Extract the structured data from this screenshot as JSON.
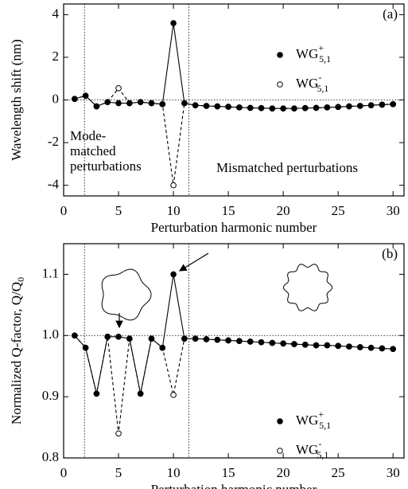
{
  "chart_data": [
    {
      "type": "line",
      "panel_label": "(a)",
      "xlabel": "Perturbation harmonic number",
      "ylabel": "Wavelength shift (nm)",
      "x": [
        1,
        2,
        3,
        4,
        5,
        6,
        7,
        8,
        9,
        10,
        11,
        12,
        13,
        14,
        15,
        16,
        17,
        18,
        19,
        20,
        21,
        22,
        23,
        24,
        25,
        26,
        27,
        28,
        29,
        30
      ],
      "series": [
        {
          "name": "WG",
          "superscript": "+",
          "subscript": "5,1",
          "color": "#000000",
          "marker": "filled",
          "dashed": false,
          "values": [
            0.05,
            0.2,
            -0.3,
            -0.1,
            -0.15,
            -0.15,
            -0.1,
            -0.15,
            -0.2,
            3.6,
            -0.15,
            -0.25,
            -0.28,
            -0.3,
            -0.32,
            -0.35,
            -0.37,
            -0.38,
            -0.4,
            -0.4,
            -0.4,
            -0.38,
            -0.37,
            -0.35,
            -0.33,
            -0.3,
            -0.28,
            -0.25,
            -0.22,
            -0.2
          ]
        },
        {
          "name": "WG",
          "superscript": "-",
          "subscript": "5,1",
          "color": "#000000",
          "marker": "open",
          "dashed": true,
          "values": [
            0.05,
            0.2,
            -0.3,
            -0.1,
            0.55,
            -0.15,
            -0.1,
            -0.15,
            -0.2,
            -4.0,
            -0.15,
            -0.25,
            -0.28,
            -0.3,
            -0.32,
            -0.35,
            -0.37,
            -0.38,
            -0.4,
            -0.4,
            -0.4,
            -0.38,
            -0.37,
            -0.35,
            -0.33,
            -0.3,
            -0.28,
            -0.25,
            -0.22,
            -0.2
          ]
        }
      ],
      "xlim": [
        0,
        31
      ],
      "xticks": [
        0,
        5,
        10,
        15,
        20,
        25,
        30
      ],
      "ylim": [
        -4.5,
        4.5
      ],
      "yticks": [
        -4,
        -2,
        0,
        2,
        4
      ],
      "vlines": [
        1.9,
        11.4
      ],
      "hline": 0,
      "legend": "upper right",
      "annotations": [
        {
          "lines": [
            "Mode-",
            "matched",
            "perturbations"
          ]
        },
        {
          "lines": [
            "Mismatched perturbations"
          ]
        }
      ]
    },
    {
      "type": "line",
      "panel_label": "(b)",
      "xlabel": "Perturbation harmonic number",
      "ylabel": "Normalized Q-factor, Q/Q",
      "ylabel_subscript": "0",
      "x": [
        1,
        2,
        3,
        4,
        5,
        6,
        7,
        8,
        9,
        10,
        11,
        12,
        13,
        14,
        15,
        16,
        17,
        18,
        19,
        20,
        21,
        22,
        23,
        24,
        25,
        26,
        27,
        28,
        29,
        30
      ],
      "series": [
        {
          "name": "WG",
          "superscript": "+",
          "subscript": "5,1",
          "color": "#000000",
          "marker": "filled",
          "dashed": false,
          "values": [
            1.0,
            0.98,
            0.905,
            0.998,
            0.998,
            0.995,
            0.905,
            0.995,
            0.98,
            1.1,
            0.995,
            0.995,
            0.994,
            0.993,
            0.992,
            0.991,
            0.99,
            0.989,
            0.988,
            0.987,
            0.986,
            0.985,
            0.984,
            0.984,
            0.983,
            0.982,
            0.981,
            0.98,
            0.979,
            0.978
          ]
        },
        {
          "name": "WG",
          "superscript": "-",
          "subscript": "5,1",
          "color": "#000000",
          "marker": "open",
          "dashed": true,
          "values": [
            1.0,
            0.98,
            0.905,
            0.998,
            0.84,
            0.995,
            0.905,
            0.995,
            0.98,
            0.903,
            0.995,
            0.995,
            0.994,
            0.993,
            0.992,
            0.991,
            0.99,
            0.989,
            0.988,
            0.987,
            0.986,
            0.985,
            0.984,
            0.984,
            0.983,
            0.982,
            0.981,
            0.98,
            0.979,
            0.978
          ]
        }
      ],
      "xlim": [
        0,
        31
      ],
      "xticks": [
        0,
        5,
        10,
        15,
        20,
        25,
        30
      ],
      "ylim": [
        0.8,
        1.15
      ],
      "yticks": [
        0.8,
        0.9,
        {
          "value": 1,
          "label": "1.0"
        },
        1.1
      ],
      "vlines": [
        1.9,
        11.4
      ],
      "hline": 1,
      "legend": "lower right",
      "annotations": []
    }
  ]
}
